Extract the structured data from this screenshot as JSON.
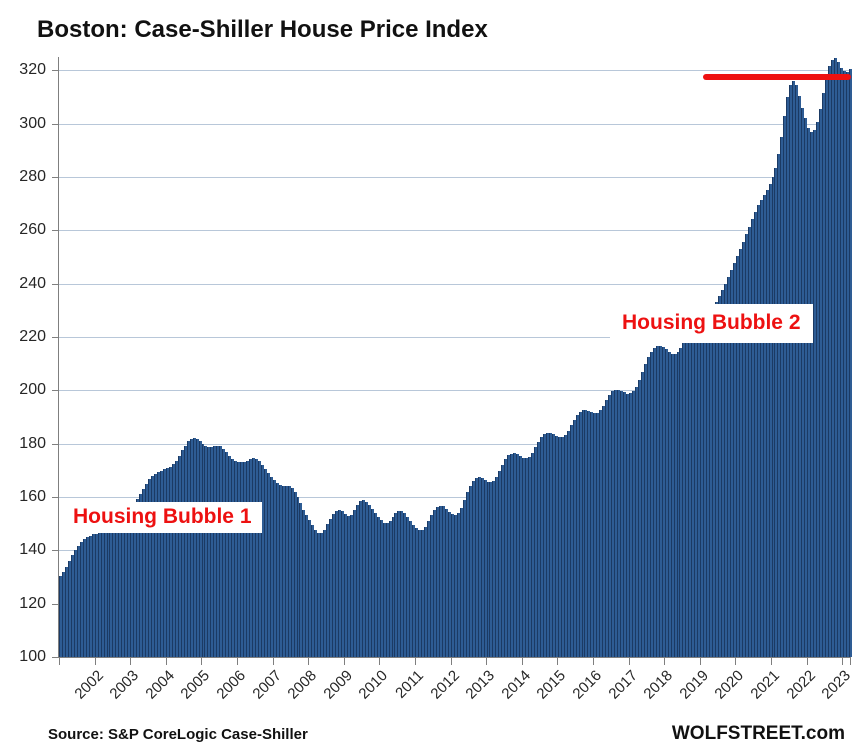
{
  "title": "Boston: Case-Shiller House Price Index",
  "annotations": {
    "bubble1": "Housing Bubble 1",
    "bubble2": "Housing Bubble 2"
  },
  "source_note": "Source: S&P CoreLogic Case-Shiller",
  "branding": "WOLFSTREET.com",
  "colors": {
    "bar_fill": "#2e5c94",
    "bar_edge": "#1b3a64",
    "grid": "#b8c7d9",
    "axis": "#7f7f7f",
    "red": "#ee1111",
    "annotation_red": "#ed1111",
    "text": "#262626"
  },
  "chart_data": {
    "type": "bar",
    "title": "Boston: Case-Shiller House Price Index",
    "xlabel": "",
    "ylabel": "",
    "ylim": [
      100,
      325
    ],
    "y_ticks": [
      100,
      120,
      140,
      160,
      180,
      200,
      220,
      240,
      260,
      280,
      300,
      320
    ],
    "grid": true,
    "legend_position": "none",
    "x_year_labels": [
      "2002",
      "2003",
      "2004",
      "2005",
      "2006",
      "2007",
      "2008",
      "2009",
      "2010",
      "2011",
      "2012",
      "2013",
      "2014",
      "2015",
      "2016",
      "2017",
      "2018",
      "2019",
      "2020",
      "2021",
      "2022",
      "2023"
    ],
    "series": [
      {
        "name": "Boston Case-Shiller House Price Index",
        "frequency": "monthly",
        "start": "2002-01",
        "values": [
          130.3,
          131.8,
          133.8,
          136.1,
          138.2,
          140.1,
          141.8,
          143.2,
          144.2,
          144.9,
          145.5,
          146.0,
          146.3,
          146.7,
          147.2,
          148.1,
          149.4,
          151.0,
          152.7,
          154.2,
          155.3,
          156.1,
          156.7,
          157.1,
          157.5,
          158.1,
          159.3,
          161.0,
          163.0,
          164.9,
          166.6,
          167.9,
          168.8,
          169.4,
          169.9,
          170.4,
          170.9,
          171.4,
          172.3,
          173.7,
          175.5,
          177.5,
          179.3,
          180.9,
          181.9,
          182.2,
          181.8,
          181.0,
          180.0,
          179.1,
          178.6,
          178.6,
          179.0,
          179.3,
          179.1,
          178.2,
          176.8,
          175.4,
          174.4,
          173.7,
          173.3,
          173.0,
          173.1,
          173.5,
          174.1,
          174.5,
          174.3,
          173.5,
          172.2,
          170.6,
          169.1,
          167.7,
          166.4,
          165.3,
          164.6,
          164.3,
          164.2,
          164.1,
          163.4,
          162.0,
          160.0,
          157.6,
          155.2,
          153.2,
          151.3,
          149.4,
          147.7,
          146.5,
          146.6,
          147.8,
          149.8,
          151.9,
          153.6,
          154.8,
          155.2,
          154.6,
          153.6,
          152.9,
          153.3,
          155.0,
          157.2,
          158.7,
          158.9,
          158.2,
          157.0,
          155.5,
          154.0,
          152.6,
          151.3,
          150.4,
          150.2,
          151.0,
          152.4,
          153.9,
          154.9,
          154.9,
          154.0,
          152.6,
          151.0,
          149.6,
          148.4,
          147.6,
          147.7,
          148.9,
          151.0,
          153.3,
          155.2,
          156.4,
          156.8,
          156.5,
          155.6,
          154.5,
          153.7,
          153.4,
          154.1,
          156.0,
          158.8,
          161.8,
          164.3,
          166.2,
          167.3,
          167.6,
          167.2,
          166.5,
          165.8,
          165.5,
          166.0,
          167.5,
          169.8,
          172.2,
          174.2,
          175.6,
          176.3,
          176.4,
          176.0,
          175.3,
          174.7,
          174.5,
          175.1,
          176.6,
          178.7,
          180.8,
          182.5,
          183.6,
          184.1,
          184.0,
          183.6,
          183.0,
          182.5,
          182.4,
          183.1,
          184.7,
          186.9,
          189.0,
          190.7,
          191.9,
          192.5,
          192.6,
          192.4,
          192.0,
          191.6,
          191.7,
          192.5,
          194.2,
          196.4,
          198.3,
          199.6,
          200.3,
          200.3,
          199.9,
          199.3,
          198.6,
          199.0,
          199.6,
          201.2,
          203.8,
          206.9,
          210.0,
          212.6,
          214.5,
          215.8,
          216.5,
          216.7,
          216.4,
          215.6,
          214.4,
          213.7,
          213.6,
          214.4,
          215.8,
          217.6,
          219.4,
          220.8,
          221.8,
          222.4,
          222.9,
          223.5,
          224.6,
          226.4,
          228.6,
          230.9,
          233.2,
          235.4,
          237.6,
          239.9,
          242.4,
          245.0,
          247.7,
          250.4,
          253.0,
          255.7,
          258.5,
          261.4,
          264.3,
          267.0,
          269.4,
          271.4,
          273.2,
          275.1,
          277.3,
          280.0,
          283.5,
          288.5,
          295.0,
          303.0,
          310.0,
          314.5,
          316.2,
          314.5,
          310.5,
          306.0,
          302.0,
          298.5,
          296.8,
          297.5,
          300.5,
          305.5,
          311.5,
          317.0,
          321.5,
          324.0,
          324.5,
          323.0,
          321.0,
          319.8,
          319.5,
          320.5
        ]
      }
    ],
    "reference_line": {
      "value": 317.5,
      "start_month_index": 217,
      "end_month_index": 266,
      "color": "#ee1111"
    },
    "annotations": [
      {
        "text": "Housing Bubble 1",
        "near": "2005 peak region"
      },
      {
        "text": "Housing Bubble 2",
        "near": "2019-2023 region"
      }
    ]
  }
}
